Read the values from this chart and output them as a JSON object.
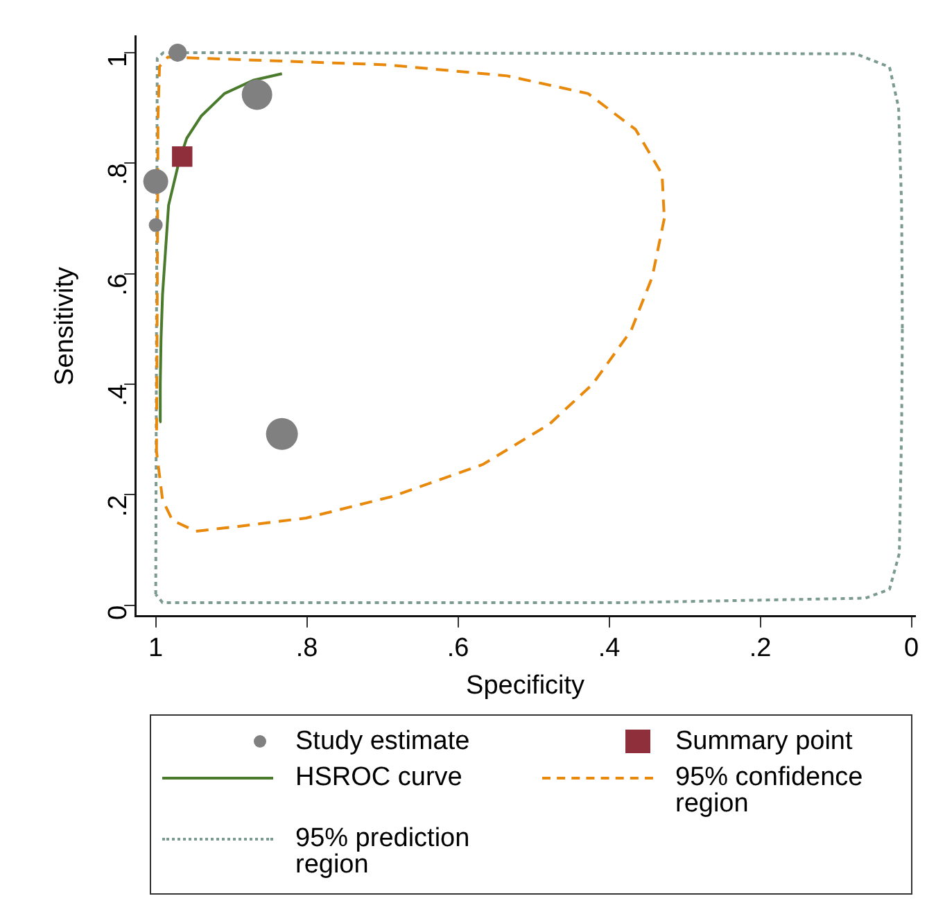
{
  "chart_data": {
    "type": "scatter",
    "xlabel": "Specificity",
    "ylabel": "Sensitivity",
    "xlim": [
      1.027,
      -0.005
    ],
    "ylim": [
      -0.02,
      1.03
    ],
    "xticks": [
      1,
      {
        "value": 0.8,
        "label": ".8"
      },
      {
        "value": 0.6,
        "label": ".6"
      },
      {
        "value": 0.4,
        "label": ".4"
      },
      {
        "value": 0.2,
        "label": ".2"
      },
      0
    ],
    "yticks": [
      0,
      {
        "value": 0.2,
        "label": ".2"
      },
      {
        "value": 0.4,
        "label": ".4"
      },
      {
        "value": 0.6,
        "label": ".6"
      },
      {
        "value": 0.8,
        "label": ".8"
      },
      1
    ],
    "grid": false,
    "legend": "bottom",
    "series": [
      {
        "name": "Study estimate",
        "type": "bubble",
        "color": "#808080",
        "x": [
          0.971,
          0.866,
          1.0,
          1.0,
          0.833
        ],
        "values": [
          1.0,
          0.924,
          0.767,
          0.688,
          0.31
        ],
        "sizes": [
          0.32,
          0.91,
          0.61,
          0.19,
          1
        ]
      },
      {
        "name": "Summary point",
        "marker": "square",
        "color": "#8e2f3b",
        "x": [
          0.965
        ],
        "values": [
          0.812
        ]
      },
      {
        "name": "HSROC curve",
        "type": "line",
        "line_style": "solid",
        "color": "#4a7a2c",
        "x": [
          0.995,
          0.994,
          0.993,
          0.991,
          0.983,
          0.969,
          0.959,
          0.94,
          0.909,
          0.871,
          0.833
        ],
        "values": [
          0.332,
          0.4,
          0.481,
          0.562,
          0.724,
          0.804,
          0.845,
          0.885,
          0.926,
          0.95,
          0.962
        ]
      },
      {
        "name": "95% confidence region",
        "type": "line",
        "line_style": "dashed",
        "color": "#e8890c",
        "x": [
          0.999,
          0.998,
          0.997,
          0.995,
          0.984,
          0.694,
          0.535,
          0.428,
          0.365,
          0.33,
          0.327,
          null,
          0.327,
          0.343,
          0.371,
          0.422,
          0.479,
          0.567,
          0.687,
          0.801,
          0.896,
          0.947,
          0.978,
          0.991,
          0.999
        ],
        "values": [
          0.279,
          0.561,
          0.885,
          0.975,
          0.992,
          0.978,
          0.958,
          0.926,
          0.861,
          0.78,
          0.7,
          null,
          0.7,
          0.594,
          0.497,
          0.4,
          0.328,
          0.255,
          0.197,
          0.158,
          0.142,
          0.134,
          0.154,
          0.191,
          0.279
        ]
      },
      {
        "name": "95% prediction region",
        "type": "line",
        "line_style": "dotted",
        "color": "#7b9a90",
        "x": [
          1.0,
          0.999,
          0.998,
          0.99,
          0.074,
          0.029,
          0.017,
          0.013,
          0.012,
          null,
          0.012,
          0.013,
          0.016,
          0.029,
          0.061,
          0.377,
          0.991,
          1.0
        ],
        "values": [
          0.02,
          0.5,
          0.99,
          1.0,
          0.998,
          0.974,
          0.901,
          0.724,
          0.5,
          null,
          0.5,
          0.32,
          0.094,
          0.029,
          0.013,
          0.005,
          0.005,
          0.02
        ]
      }
    ]
  }
}
